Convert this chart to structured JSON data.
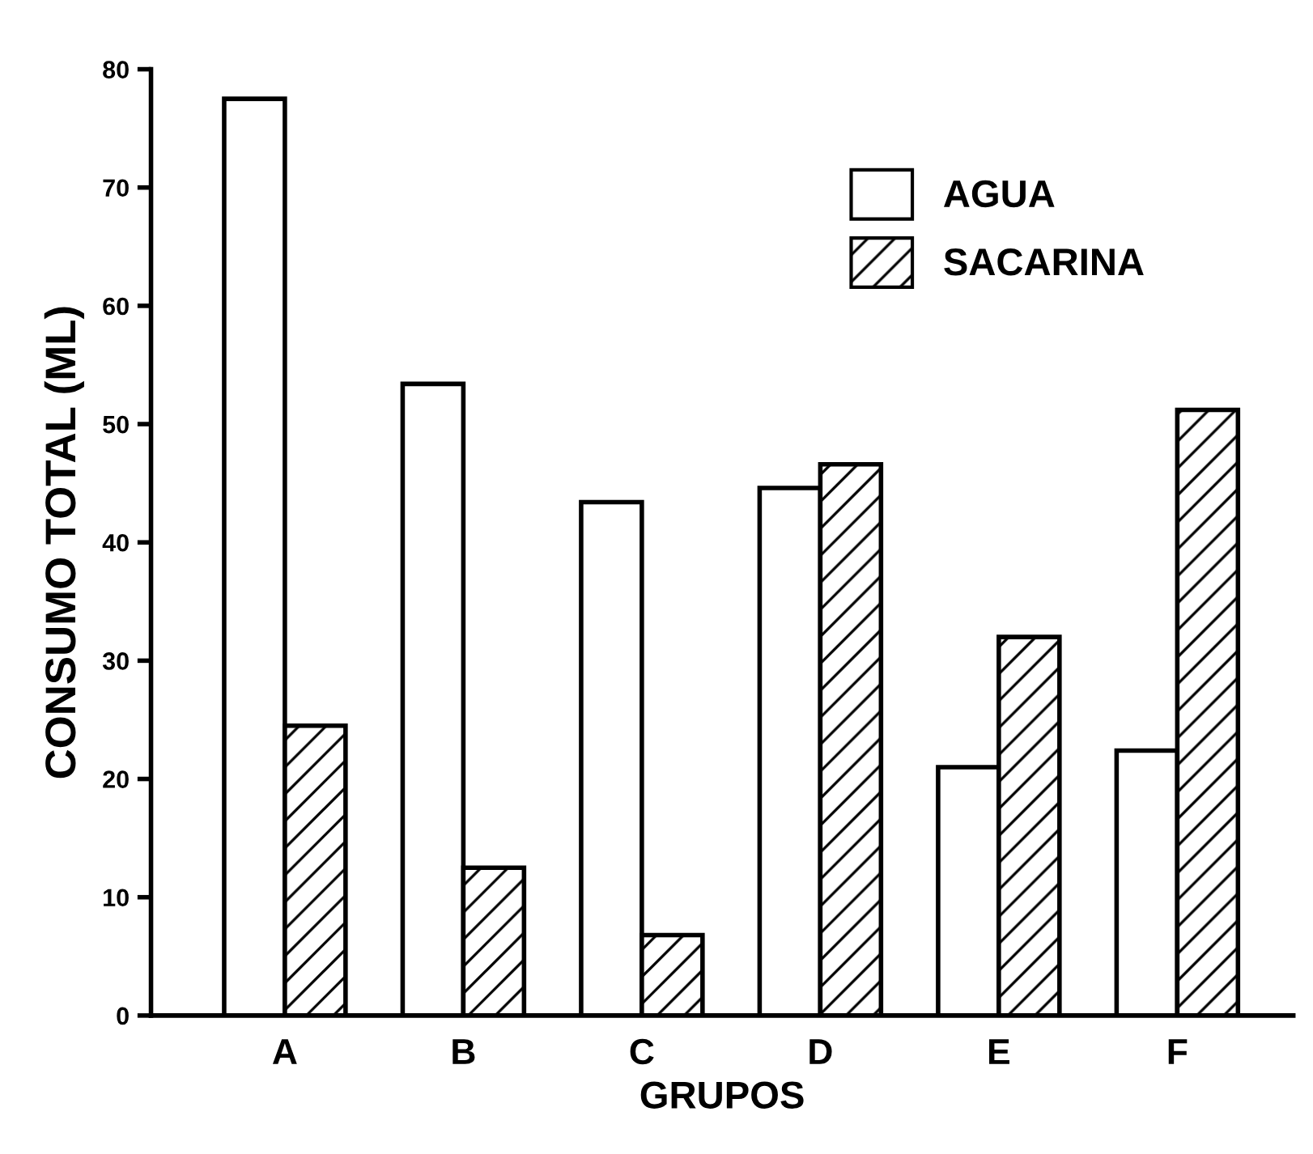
{
  "chart_data": {
    "type": "bar",
    "xlabel": "GRUPOS",
    "ylabel": "CONSUMO TOTAL (ML)",
    "categories": [
      "A",
      "B",
      "C",
      "D",
      "E",
      "F"
    ],
    "series": [
      {
        "name": "AGUA",
        "color": "#ffffff",
        "values": [
          77.5,
          53.4,
          43.4,
          44.6,
          21,
          22.4
        ]
      },
      {
        "name": "SACARINA",
        "color": "#000000",
        "values": [
          24.5,
          12.5,
          6.8,
          46.6,
          32,
          51.2
        ]
      }
    ],
    "ylim": [
      0,
      80
    ],
    "yticks": [
      0,
      10,
      20,
      30,
      40,
      50,
      60,
      70,
      80
    ],
    "grid": false,
    "legend": "top right"
  }
}
